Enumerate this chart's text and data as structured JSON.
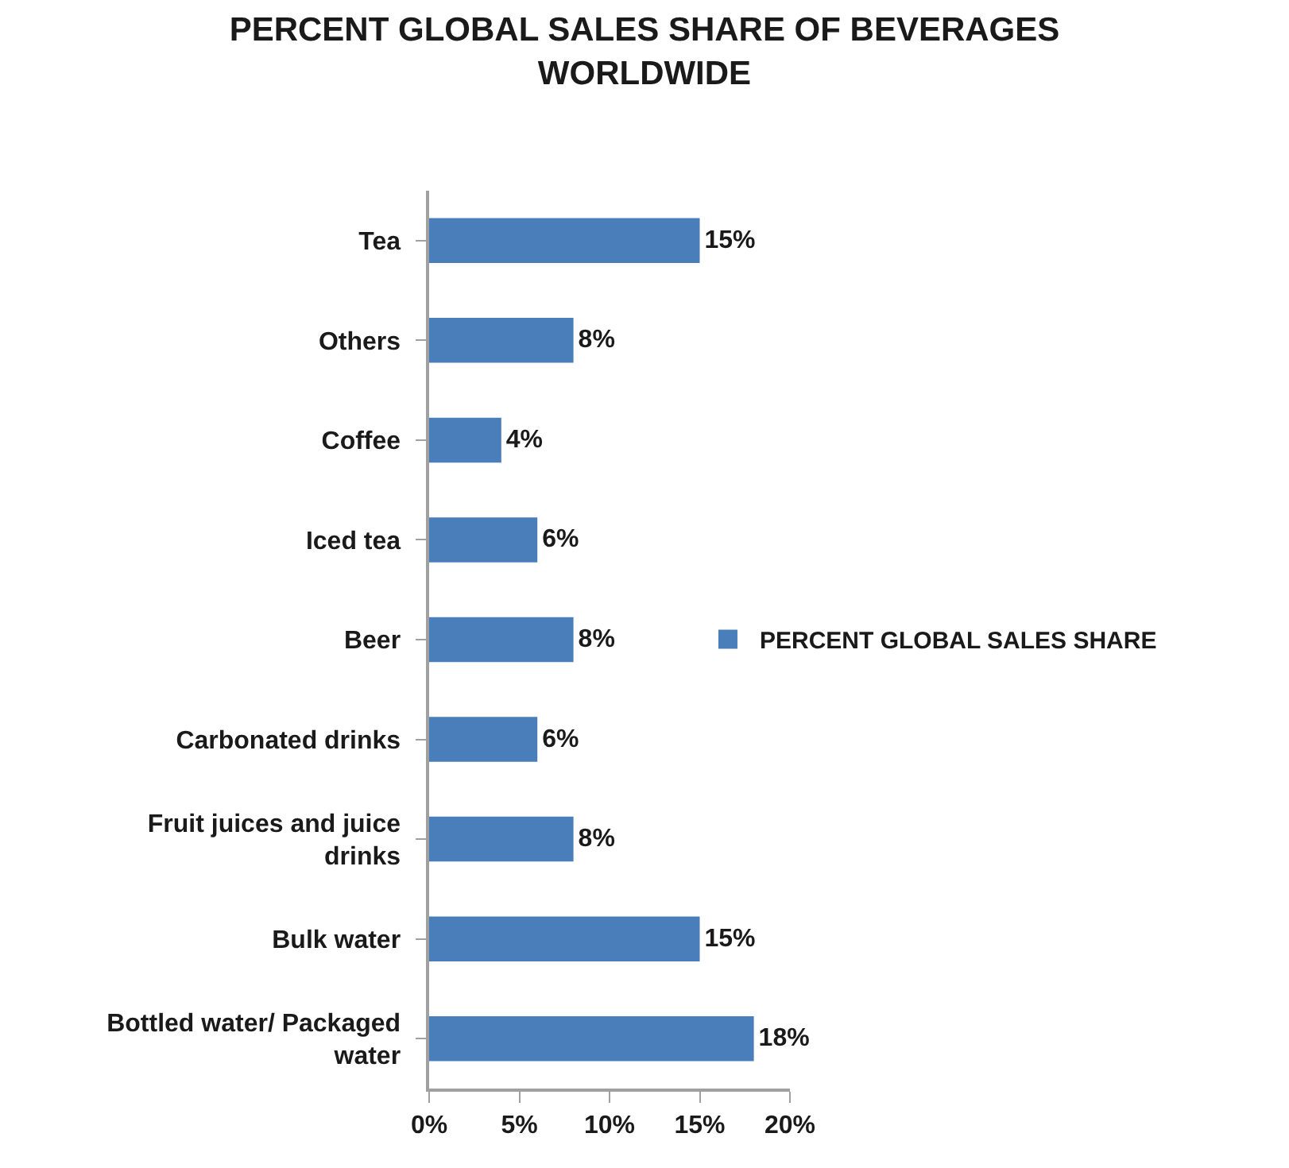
{
  "chart_data": {
    "type": "bar",
    "orientation": "horizontal",
    "title": "PERCENT GLOBAL SALES SHARE OF BEVERAGES WORLDWIDE",
    "categories": [
      "Tea",
      "Others",
      "Coffee",
      "Iced tea",
      "Beer",
      "Carbonated drinks",
      "Fruit juices and juice drinks",
      "Bulk water",
      "Bottled water/ Packaged water"
    ],
    "series": [
      {
        "name": "PERCENT GLOBAL SALES SHARE",
        "color": "#4a7ebb",
        "values": [
          15,
          8,
          4,
          6,
          8,
          6,
          8,
          15,
          18
        ],
        "value_labels": [
          "15%",
          "8%",
          "4%",
          "6%",
          "8%",
          "6%",
          "8%",
          "15%",
          "18%"
        ]
      }
    ],
    "xlim": [
      0,
      20
    ],
    "xticks": [
      {
        "value": 0,
        "label": "0%"
      },
      {
        "value": 5,
        "label": "5%"
      },
      {
        "value": 10,
        "label": "10%"
      },
      {
        "value": 15,
        "label": "15%"
      },
      {
        "value": 20,
        "label": "20%"
      }
    ],
    "grid": false,
    "legend": "right"
  }
}
